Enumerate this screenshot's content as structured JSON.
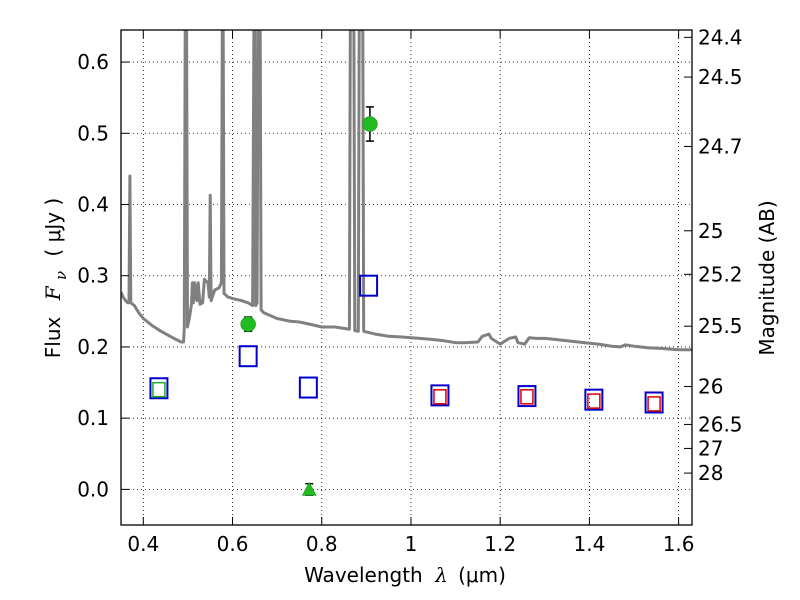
{
  "chart_data": {
    "type": "scatter",
    "xlabel": "Wavelength",
    "xlabel_symbol": "λ",
    "xlabel_unit": "(μm)",
    "ylabel": "Flux",
    "ylabel_symbol": "F",
    "ylabel_subscript": "ν",
    "ylabel_unit": "( μJy )",
    "y2label": "Magnitude (AB)",
    "xlim": [
      0.35,
      1.63
    ],
    "ylim": [
      -0.05,
      0.645
    ],
    "grid": true,
    "grid_style": "dotted",
    "xticks": [
      {
        "value": 0.4,
        "label": "0.4"
      },
      {
        "value": 0.6,
        "label": "0.6"
      },
      {
        "value": 0.8,
        "label": "0.8"
      },
      {
        "value": 1.0,
        "label": "1"
      },
      {
        "value": 1.2,
        "label": "1.2"
      },
      {
        "value": 1.4,
        "label": "1.4"
      },
      {
        "value": 1.6,
        "label": "1.6"
      }
    ],
    "yticks": [
      {
        "value": 0.0,
        "label": "0.0"
      },
      {
        "value": 0.1,
        "label": "0.1"
      },
      {
        "value": 0.2,
        "label": "0.2"
      },
      {
        "value": 0.3,
        "label": "0.3"
      },
      {
        "value": 0.4,
        "label": "0.4"
      },
      {
        "value": 0.5,
        "label": "0.5"
      },
      {
        "value": 0.6,
        "label": "0.6"
      }
    ],
    "y2ticks": [
      {
        "flux": 0.6347,
        "label": "24.4"
      },
      {
        "flux": 0.5789,
        "label": "24.5"
      },
      {
        "flux": 0.4815,
        "label": "24.7"
      },
      {
        "flux": 0.3631,
        "label": "25"
      },
      {
        "flux": 0.302,
        "label": "25.2"
      },
      {
        "flux": 0.2291,
        "label": "25.5"
      },
      {
        "flux": 0.1445,
        "label": "26"
      },
      {
        "flux": 0.0912,
        "label": "26.5"
      },
      {
        "flux": 0.0575,
        "label": "27"
      },
      {
        "flux": 0.0229,
        "label": "28"
      }
    ],
    "series": [
      {
        "kind": "line",
        "color": "#808080",
        "points": [
          [
            0.35,
            0.277
          ],
          [
            0.355,
            0.27
          ],
          [
            0.36,
            0.265
          ],
          [
            0.365,
            0.262
          ],
          [
            0.368,
            0.262
          ],
          [
            0.37,
            0.44
          ],
          [
            0.372,
            0.262
          ],
          [
            0.38,
            0.258
          ],
          [
            0.39,
            0.248
          ],
          [
            0.4,
            0.24
          ],
          [
            0.42,
            0.23
          ],
          [
            0.44,
            0.222
          ],
          [
            0.46,
            0.215
          ],
          [
            0.475,
            0.21
          ],
          [
            0.485,
            0.207
          ],
          [
            0.49,
            0.207
          ],
          [
            0.492,
            0.226
          ],
          [
            0.494,
            0.645
          ],
          [
            0.497,
            0.645
          ],
          [
            0.499,
            0.228
          ],
          [
            0.503,
            0.24
          ],
          [
            0.508,
            0.26
          ],
          [
            0.51,
            0.29
          ],
          [
            0.512,
            0.262
          ],
          [
            0.515,
            0.29
          ],
          [
            0.52,
            0.265
          ],
          [
            0.523,
            0.29
          ],
          [
            0.527,
            0.26
          ],
          [
            0.533,
            0.262
          ],
          [
            0.537,
            0.295
          ],
          [
            0.545,
            0.29
          ],
          [
            0.548,
            0.27
          ],
          [
            0.55,
            0.413
          ],
          [
            0.552,
            0.265
          ],
          [
            0.56,
            0.28
          ],
          [
            0.57,
            0.283
          ],
          [
            0.575,
            0.29
          ],
          [
            0.577,
            0.645
          ],
          [
            0.579,
            0.645
          ],
          [
            0.581,
            0.275
          ],
          [
            0.59,
            0.27
          ],
          [
            0.6,
            0.268
          ],
          [
            0.62,
            0.265
          ],
          [
            0.635,
            0.262
          ],
          [
            0.645,
            0.258
          ],
          [
            0.648,
            0.645
          ],
          [
            0.65,
            0.645
          ],
          [
            0.652,
            0.258
          ],
          [
            0.655,
            0.262
          ],
          [
            0.657,
            0.645
          ],
          [
            0.662,
            0.645
          ],
          [
            0.664,
            0.252
          ],
          [
            0.67,
            0.248
          ],
          [
            0.7,
            0.24
          ],
          [
            0.73,
            0.236
          ],
          [
            0.75,
            0.235
          ],
          [
            0.78,
            0.231
          ],
          [
            0.8,
            0.228
          ],
          [
            0.83,
            0.228
          ],
          [
            0.86,
            0.225
          ],
          [
            0.862,
            0.225
          ],
          [
            0.864,
            0.645
          ],
          [
            0.872,
            0.645
          ],
          [
            0.874,
            0.223
          ],
          [
            0.882,
            0.222
          ],
          [
            0.884,
            0.645
          ],
          [
            0.892,
            0.645
          ],
          [
            0.894,
            0.222
          ],
          [
            0.92,
            0.218
          ],
          [
            0.95,
            0.215
          ],
          [
            0.98,
            0.214
          ],
          [
            1.0,
            0.213
          ],
          [
            1.02,
            0.212
          ],
          [
            1.04,
            0.211
          ],
          [
            1.07,
            0.209
          ],
          [
            1.1,
            0.206
          ],
          [
            1.12,
            0.206
          ],
          [
            1.15,
            0.207
          ],
          [
            1.16,
            0.215
          ],
          [
            1.175,
            0.218
          ],
          [
            1.18,
            0.212
          ],
          [
            1.2,
            0.204
          ],
          [
            1.22,
            0.212
          ],
          [
            1.235,
            0.214
          ],
          [
            1.24,
            0.206
          ],
          [
            1.255,
            0.204
          ],
          [
            1.265,
            0.213
          ],
          [
            1.28,
            0.212
          ],
          [
            1.3,
            0.212
          ],
          [
            1.33,
            0.21
          ],
          [
            1.36,
            0.208
          ],
          [
            1.39,
            0.206
          ],
          [
            1.42,
            0.204
          ],
          [
            1.45,
            0.201
          ],
          [
            1.47,
            0.2
          ],
          [
            1.48,
            0.203
          ],
          [
            1.5,
            0.201
          ],
          [
            1.53,
            0.199
          ],
          [
            1.56,
            0.198
          ],
          [
            1.6,
            0.196
          ],
          [
            1.63,
            0.196
          ]
        ]
      },
      {
        "kind": "blue-open-square",
        "color": "#0000cc",
        "points": [
          [
            0.435,
            0.142
          ],
          [
            0.635,
            0.187
          ],
          [
            0.77,
            0.143
          ],
          [
            0.905,
            0.286
          ],
          [
            1.065,
            0.132
          ],
          [
            1.26,
            0.131
          ],
          [
            1.41,
            0.126
          ],
          [
            1.545,
            0.122
          ]
        ]
      },
      {
        "kind": "red-open-square",
        "color": "#dd0000",
        "points": [
          [
            1.065,
            0.13
          ],
          [
            1.26,
            0.13
          ],
          [
            1.41,
            0.124
          ],
          [
            1.545,
            0.12
          ]
        ]
      },
      {
        "kind": "green-open-square",
        "color": "#22aa22",
        "points": [
          [
            0.435,
            0.14
          ]
        ]
      },
      {
        "kind": "green-circle-errorbar",
        "color": "#22bb22",
        "points": [
          {
            "x": 0.635,
            "y": 0.232,
            "err": 0.01
          },
          {
            "x": 0.908,
            "y": 0.513,
            "err": 0.024
          }
        ]
      },
      {
        "kind": "green-triangle-errorbar",
        "color": "#22bb22",
        "points": [
          {
            "x": 0.772,
            "y": 0.0,
            "err": 0.008
          }
        ]
      }
    ]
  }
}
